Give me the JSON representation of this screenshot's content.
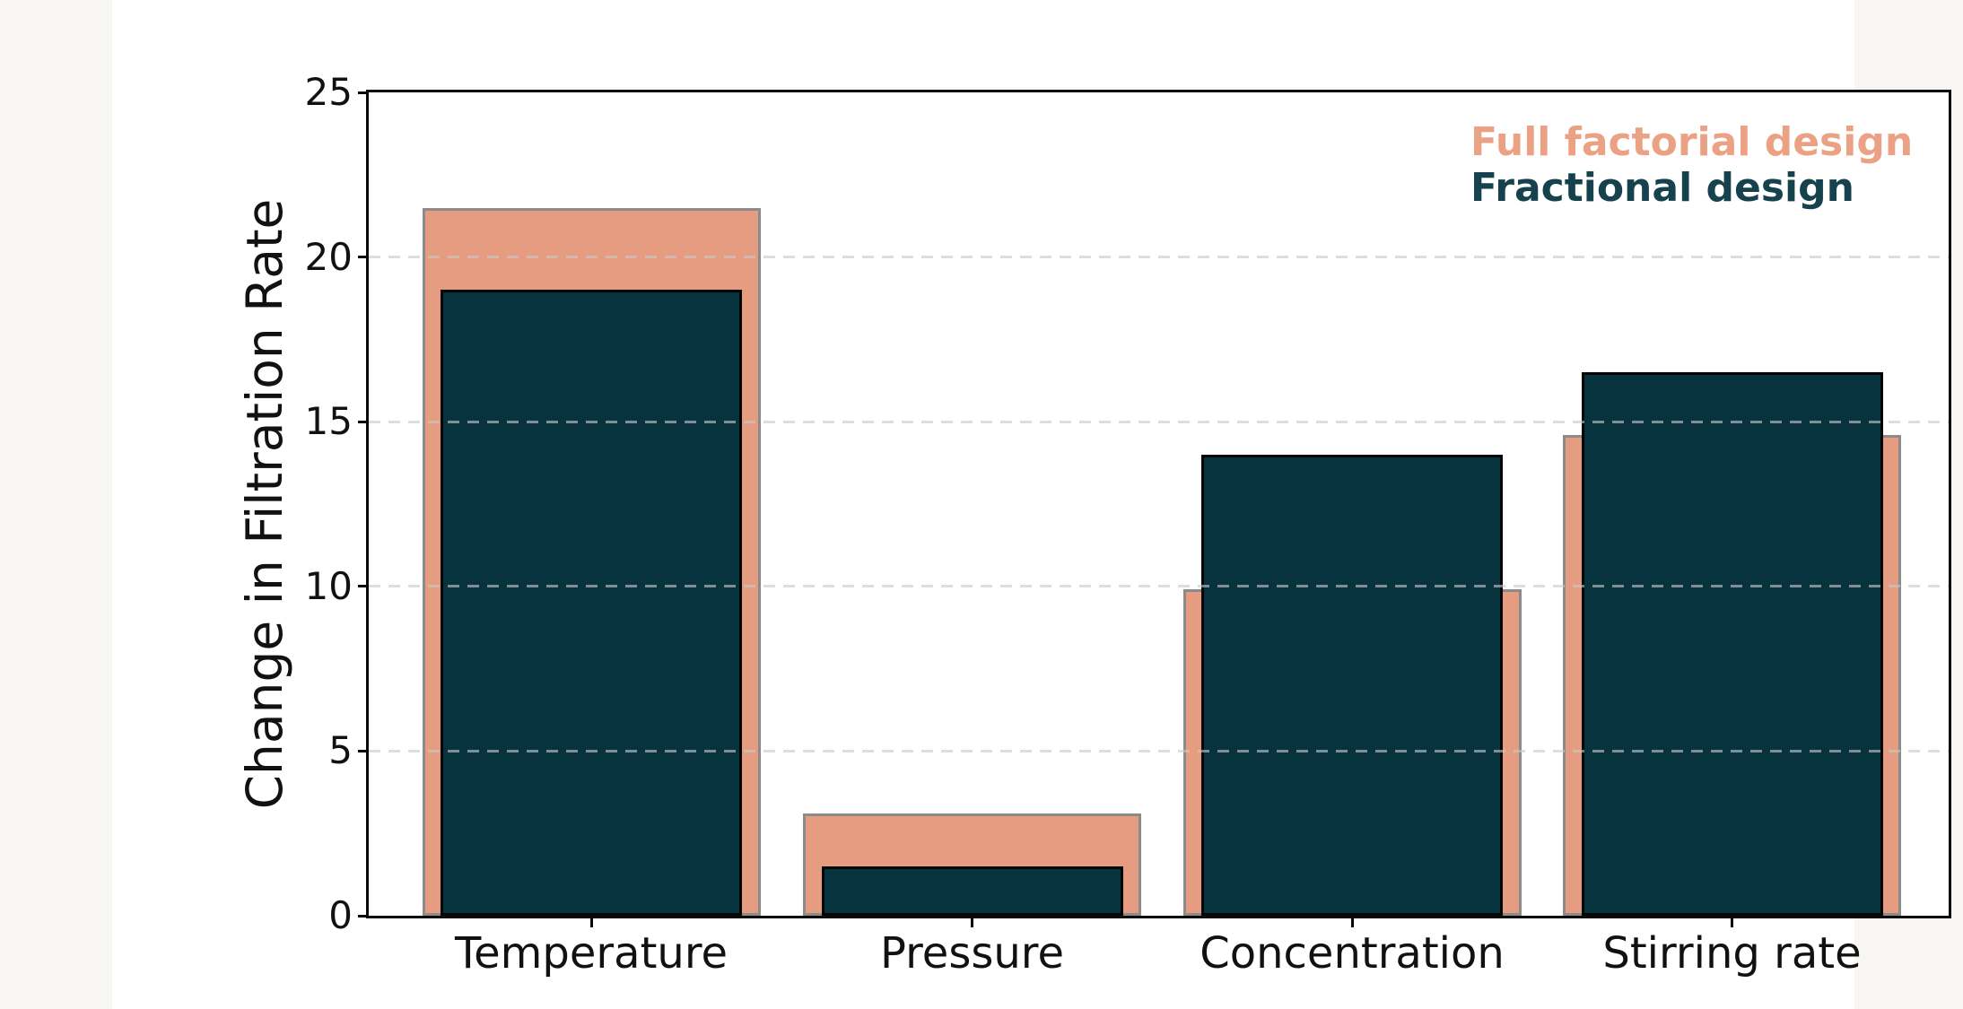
{
  "page": {
    "background_color": "#F8F6F3",
    "figure_background_color": "#FFFFFF",
    "axis_color": "#0a0a0a",
    "gridline_color": "#C9C9C9"
  },
  "chart_data": {
    "type": "bar",
    "title": "",
    "categories": [
      "Temperature",
      "Pressure",
      "Concentration",
      "Stirring rate"
    ],
    "series": [
      {
        "name": "Full factorial design",
        "values": [
          21.5,
          3.1,
          9.9,
          14.6
        ],
        "fill_color": "#E59C80",
        "edge_color": "#8B8B8B",
        "legend_text_color": "#EBA184"
      },
      {
        "name": "Fractional design",
        "values": [
          19.0,
          1.5,
          14.0,
          16.5
        ],
        "fill_color": "#06333E",
        "edge_color": "#050505",
        "legend_text_color": "#16424D"
      }
    ],
    "xlabel": "",
    "ylabel": "Change in Filtration Rate",
    "ylim": [
      0,
      25
    ],
    "yticks": [
      0,
      5,
      10,
      15,
      20,
      25
    ],
    "grid": "horizontal dashed, drawn over bars",
    "legend_position": "top-right inside plot",
    "legend_style": "colored text labels, no swatches",
    "bar_style": "overlaid centered bars (wide series behind, narrow series in front)"
  }
}
